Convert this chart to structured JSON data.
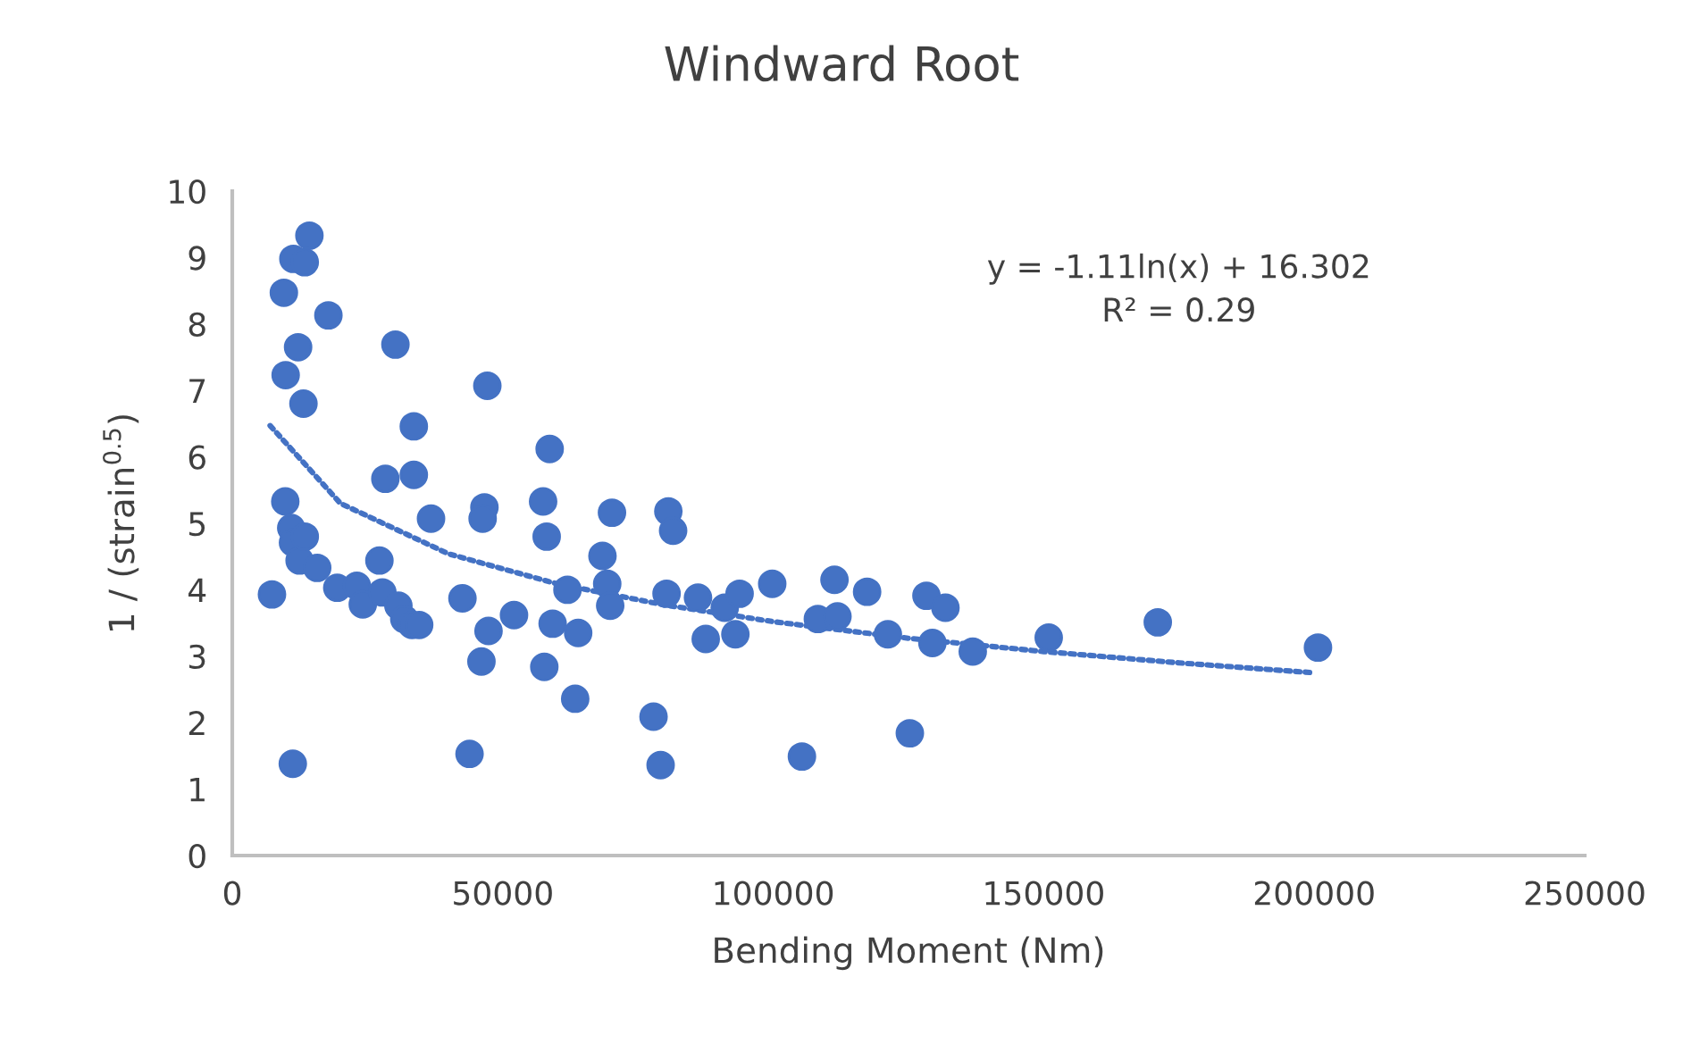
{
  "chart_data": {
    "type": "scatter",
    "title": "Windward Root",
    "xlabel": "Bending Moment (Nm)",
    "ylabel": "1 / (strain$^{0.5}$)",
    "annotations": [
      "y = -1.11ln(x) + 16.302\nR² = 0.29"
    ],
    "xlim": [
      0,
      250000
    ],
    "xticks": [
      0,
      50000,
      100000,
      150000,
      200000,
      250000
    ],
    "ylim": [
      0,
      10
    ],
    "yticks": [
      0,
      1,
      2,
      3,
      4,
      5,
      6,
      7,
      8,
      9,
      10
    ],
    "grid": false,
    "legend": false,
    "marker": "circle",
    "series": [
      {
        "color": "#4472c4",
        "x": [
          7340,
          11190,
          9800,
          10900,
          11230,
          12450,
          13400,
          15700,
          9870,
          9540,
          11300,
          13400,
          14260,
          12170,
          13160,
          17770,
          19410,
          23030,
          24130,
          27750,
          27200,
          30710,
          31800,
          33230,
          34550,
          30160,
          33560,
          33560,
          28300,
          36740,
          42550,
          46060,
          47370,
          46610,
          46280,
          47150,
          43860,
          52080,
          57460,
          58120,
          58670,
          57680,
          59220,
          61960,
          63940,
          63390,
          68430,
          69310,
          69860,
          70190,
          77870,
          79180,
          80280,
          80610,
          81490,
          86090,
          87520,
          91030,
          93000,
          93780,
          99810,
          105300,
          108250,
          111870,
          111320,
          117350,
          121190,
          125250,
          128320,
          129420,
          131830,
          136880,
          150920,
          171080,
          200690
        ],
        "values": [
          3.93,
          1.38,
          5.33,
          4.93,
          4.71,
          4.44,
          4.8,
          4.33,
          7.23,
          8.47,
          8.98,
          8.93,
          9.33,
          7.65,
          6.8,
          8.13,
          4.03,
          4.06,
          3.78,
          3.96,
          4.44,
          3.76,
          3.56,
          3.47,
          3.47,
          7.69,
          6.46,
          5.73,
          5.67,
          5.07,
          3.87,
          2.92,
          3.38,
          5.24,
          5.07,
          7.07,
          1.53,
          3.62,
          5.33,
          4.8,
          6.12,
          2.84,
          3.49,
          4.0,
          3.35,
          2.36,
          4.51,
          4.09,
          3.76,
          5.16,
          2.09,
          1.36,
          3.94,
          5.18,
          4.89,
          3.88,
          3.26,
          3.73,
          3.33,
          3.94,
          4.09,
          1.49,
          3.56,
          3.6,
          4.15,
          3.97,
          3.33,
          1.84,
          3.91,
          3.2,
          3.73,
          3.07,
          3.28,
          3.51,
          3.13
        ]
      },
      {
        "type": "line",
        "color": "#4472c4",
        "line_style": "dotted",
        "marker": "none",
        "x": [
          7000,
          20000,
          40000,
          60000,
          80000,
          100000,
          125000,
          150000,
          175000,
          200000
        ],
        "values": [
          6.47,
          5.3,
          4.54,
          4.09,
          3.77,
          3.52,
          3.27,
          3.07,
          2.9,
          2.75
        ]
      }
    ]
  }
}
